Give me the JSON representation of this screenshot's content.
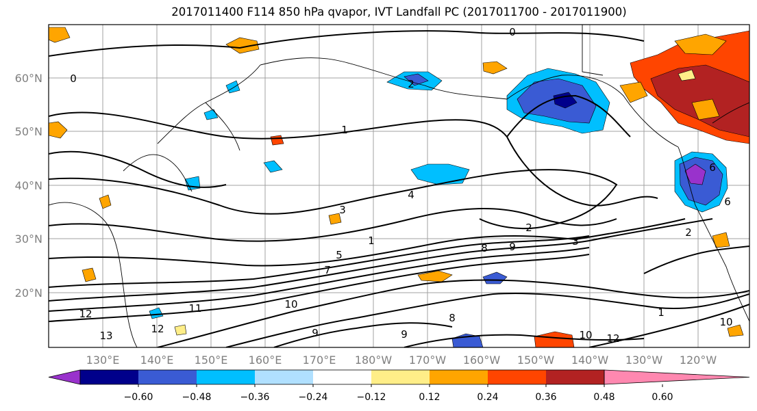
{
  "title": "2017011400 F114 850 hPa qvapor, IVT Landfall PC (2017011700 - 2017011900)",
  "lat_labels": [
    "60°N",
    "50°N",
    "40°N",
    "30°N",
    "20°N"
  ],
  "lon_labels": [
    "130°E",
    "140°E",
    "150°E",
    "160°E",
    "170°E",
    "180°W",
    "170°W",
    "160°W",
    "150°W",
    "140°W",
    "130°W",
    "120°W"
  ],
  "contour_labels": [
    "0",
    "0",
    "1",
    "1",
    "2",
    "2",
    "3",
    "3",
    "4",
    "5",
    "6",
    "6",
    "7",
    "8",
    "8",
    "9",
    "9",
    "9",
    "10",
    "10",
    "10",
    "11",
    "12",
    "12",
    "12",
    "13",
    "2",
    "1"
  ],
  "colorbar": {
    "ticks": [
      "−0.60",
      "−0.48",
      "−0.36",
      "−0.24",
      "−0.12",
      "0.12",
      "0.24",
      "0.36",
      "0.48",
      "0.60"
    ],
    "colors": [
      "#9932cc",
      "#00008b",
      "#3a5bd4",
      "#00bfff",
      "#b0e0ff",
      "#ffffff",
      "#ffee88",
      "#ffa500",
      "#ff4500",
      "#b22222",
      "#ff88b0"
    ]
  }
}
